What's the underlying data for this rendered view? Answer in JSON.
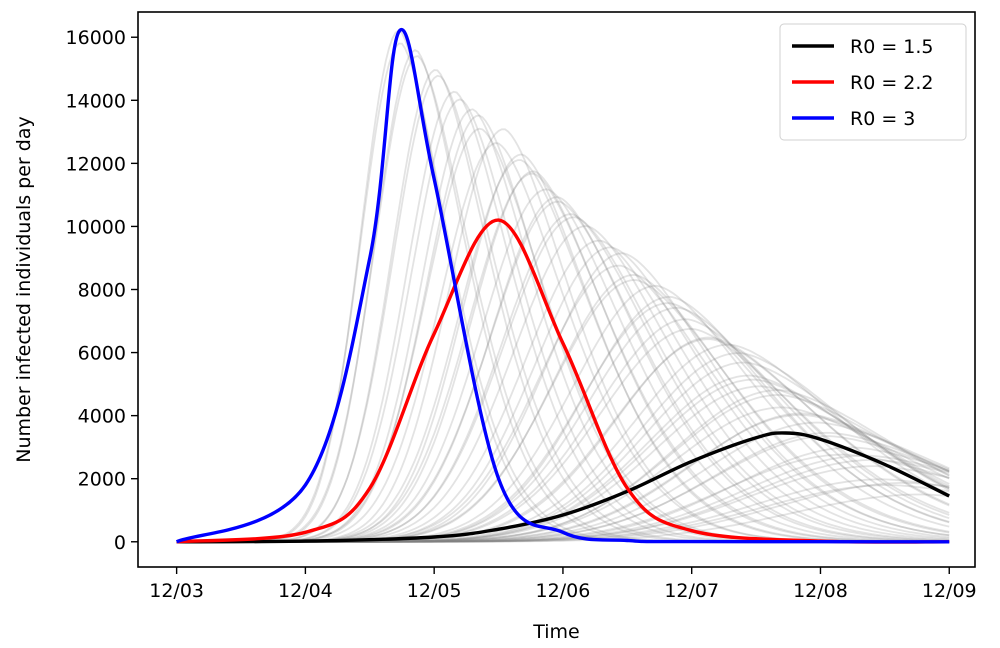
{
  "chart_data": {
    "type": "line",
    "xlabel": "Time",
    "ylabel": "Number infected individuals per day",
    "x_ticks": [
      "12/03",
      "12/04",
      "12/05",
      "12/06",
      "12/07",
      "12/08",
      "12/09"
    ],
    "y_ticks": [
      0,
      2000,
      4000,
      6000,
      8000,
      10000,
      12000,
      14000,
      16000
    ],
    "xlim": [
      "12/03",
      "12/09"
    ],
    "ylim": [
      -800,
      16800
    ],
    "grid": false,
    "legend_position": "top-right",
    "series": [
      {
        "name": "R0 = 1.5",
        "color": "#000000",
        "x": [
          "12/03",
          "12/04",
          "12/05",
          "12/05.5",
          "12/06",
          "12/06.5",
          "12/07",
          "12/07.5",
          "12/07.73",
          "12/08",
          "12/08.5",
          "12/09"
        ],
        "values": [
          0,
          20,
          150,
          400,
          850,
          1600,
          2550,
          3300,
          3450,
          3250,
          2450,
          1450
        ]
      },
      {
        "name": "R0 = 2.2",
        "color": "#ff0000",
        "x": [
          "12/03",
          "12/04",
          "12/04.5",
          "12/05",
          "12/05.5",
          "12/06",
          "12/06.5",
          "12/07",
          "12/08",
          "12/09"
        ],
        "values": [
          0,
          300,
          1700,
          6600,
          10200,
          6300,
          1700,
          350,
          20,
          0
        ]
      },
      {
        "name": "R0 = 3",
        "color": "#0000ff",
        "x": [
          "12/03",
          "12/04",
          "12/04.5",
          "12/04.73",
          "12/05",
          "12/05.5",
          "12/06",
          "12/06.5",
          "12/07",
          "12/09"
        ],
        "values": [
          0,
          1800,
          9000,
          16200,
          11500,
          2000,
          300,
          40,
          5,
          0
        ]
      }
    ],
    "background_ensemble": {
      "description_count": 60,
      "color": "#808080"
    }
  }
}
